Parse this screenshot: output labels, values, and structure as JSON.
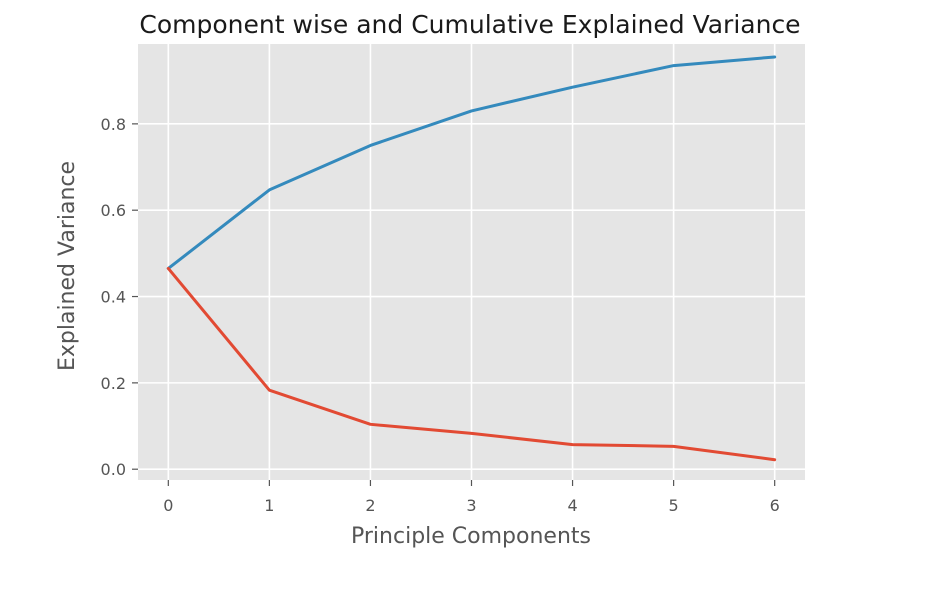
{
  "chart_data": {
    "type": "line",
    "title": "Component wise and Cumulative Explained Variance",
    "xlabel": "Principle Components",
    "ylabel": "Explained Variance",
    "x": [
      0,
      1,
      2,
      3,
      4,
      5,
      6
    ],
    "xlim": [
      -0.3,
      6.3
    ],
    "ylim": [
      -0.025,
      0.985
    ],
    "xticks": [
      0,
      1,
      2,
      3,
      4,
      5,
      6
    ],
    "yticks": [
      0.0,
      0.2,
      0.4,
      0.6,
      0.8
    ],
    "ytick_labels": [
      "0.0",
      "0.2",
      "0.4",
      "0.6",
      "0.8"
    ],
    "grid": true,
    "background": "#e5e5e5",
    "series": [
      {
        "color": "#348abd",
        "values": [
          0.465,
          0.647,
          0.75,
          0.83,
          0.885,
          0.935,
          0.955
        ]
      },
      {
        "color": "#e24a33",
        "values": [
          0.465,
          0.183,
          0.104,
          0.083,
          0.057,
          0.053,
          0.022
        ]
      }
    ]
  }
}
